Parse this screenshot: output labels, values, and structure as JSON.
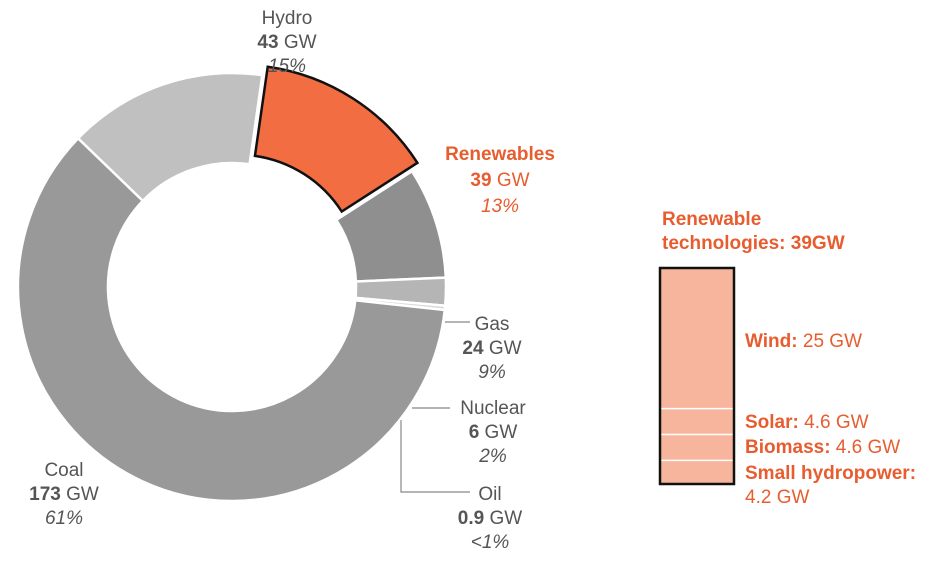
{
  "colors": {
    "coal": "#999999",
    "hydro": "#c0c0c0",
    "renewables": "#f26d41",
    "gas": "#8f8f8f",
    "nuclear": "#b5b5b5",
    "oil": "#d8d8d8",
    "accent_text": "#e85d2f",
    "stack_fill": "#f8b59d",
    "stack_border": "#111111",
    "label_text": "#555555",
    "leader_line": "#888888"
  },
  "labels": {
    "hydro": {
      "name": "Hydro",
      "value": "43",
      "unit": " GW",
      "pct": "15%"
    },
    "renewables": {
      "name": "Renewables",
      "value": "39",
      "unit": " GW",
      "pct": "13%"
    },
    "gas": {
      "name": "Gas",
      "value": "24",
      "unit": " GW",
      "pct": "9%"
    },
    "nuclear": {
      "name": "Nuclear",
      "value": "6",
      "unit": " GW",
      "pct": "2%"
    },
    "oil": {
      "name": "Oil",
      "value": "0.9",
      "unit": " GW",
      "pct": "<1%"
    },
    "coal": {
      "name": "Coal",
      "value": "173",
      "unit": " GW",
      "pct": "61%"
    }
  },
  "breakdown": {
    "title_line1": "Renewable",
    "title_line2": "technologies: 39GW",
    "items": [
      {
        "name": "Wind:",
        "value": " 25 GW"
      },
      {
        "name": "Solar:",
        "value": " 4.6 GW"
      },
      {
        "name": "Biomass:",
        "value": " 4.6 GW"
      },
      {
        "name": "Small hydropower:",
        "value": "4.2 GW"
      }
    ]
  },
  "chart_data": [
    {
      "type": "pie",
      "title": "",
      "categories": [
        "Hydro",
        "Renewables",
        "Gas",
        "Nuclear",
        "Oil",
        "Coal"
      ],
      "values": [
        43,
        39,
        24,
        6,
        0.9,
        173
      ],
      "percent_labels": [
        "15%",
        "13%",
        "9%",
        "2%",
        "<1%",
        "61%"
      ],
      "unit": "GW",
      "donut": true,
      "highlighted": "Renewables"
    },
    {
      "type": "bar",
      "stacked": true,
      "title": "Renewable technologies: 39GW",
      "categories": [
        "Wind",
        "Solar",
        "Biomass",
        "Small hydropower"
      ],
      "values": [
        25,
        4.6,
        4.6,
        4.2
      ],
      "unit": "GW"
    }
  ]
}
